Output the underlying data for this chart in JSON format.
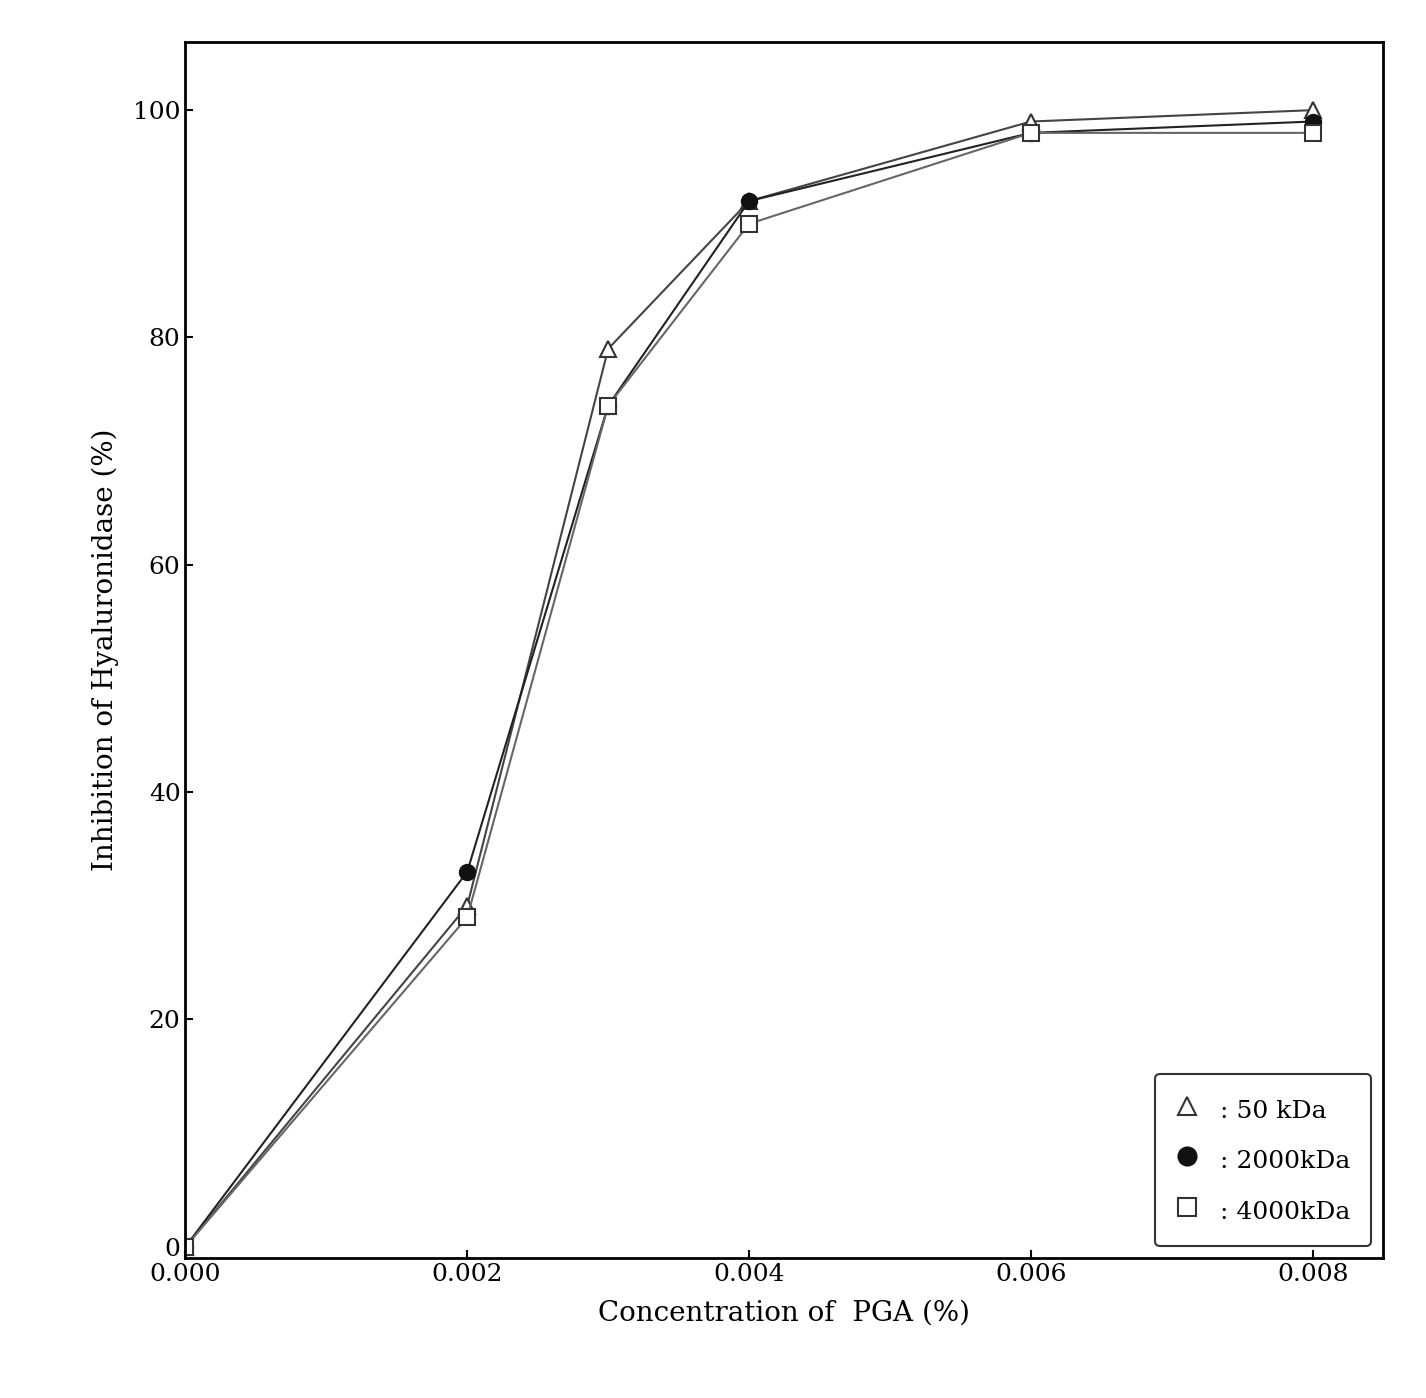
{
  "x_values": [
    0.0,
    0.002,
    0.003,
    0.004,
    0.006,
    0.008
  ],
  "series": [
    {
      "label": " : 50 kDa",
      "y_values": [
        0,
        30,
        79,
        92,
        99,
        100
      ],
      "marker": "^",
      "markersize": 11,
      "color": "#444444",
      "markerfacecolor": "white",
      "markeredgecolor": "#333333",
      "linewidth": 1.5
    },
    {
      "label": " : 2000kDa",
      "y_values": [
        0,
        33,
        74,
        92,
        98,
        99
      ],
      "marker": "o",
      "markersize": 11,
      "color": "#222222",
      "markerfacecolor": "#111111",
      "markeredgecolor": "#111111",
      "linewidth": 1.5
    },
    {
      "label": " : 4000kDa",
      "y_values": [
        0,
        29,
        74,
        90,
        98,
        98
      ],
      "marker": "s",
      "markersize": 11,
      "color": "#666666",
      "markerfacecolor": "white",
      "markeredgecolor": "#333333",
      "linewidth": 1.5
    }
  ],
  "xlabel": "Concentration of  PGA (%)",
  "ylabel": "Inhibition of Hyaluronidase (%)",
  "xlim": [
    0.0,
    0.0085
  ],
  "ylim": [
    -1,
    106
  ],
  "xticks": [
    0.0,
    0.002,
    0.004,
    0.006,
    0.008
  ],
  "yticks": [
    0,
    20,
    40,
    60,
    80,
    100
  ],
  "background_color": "#ffffff",
  "label_fontsize": 20,
  "tick_fontsize": 18,
  "legend_fontsize": 18
}
